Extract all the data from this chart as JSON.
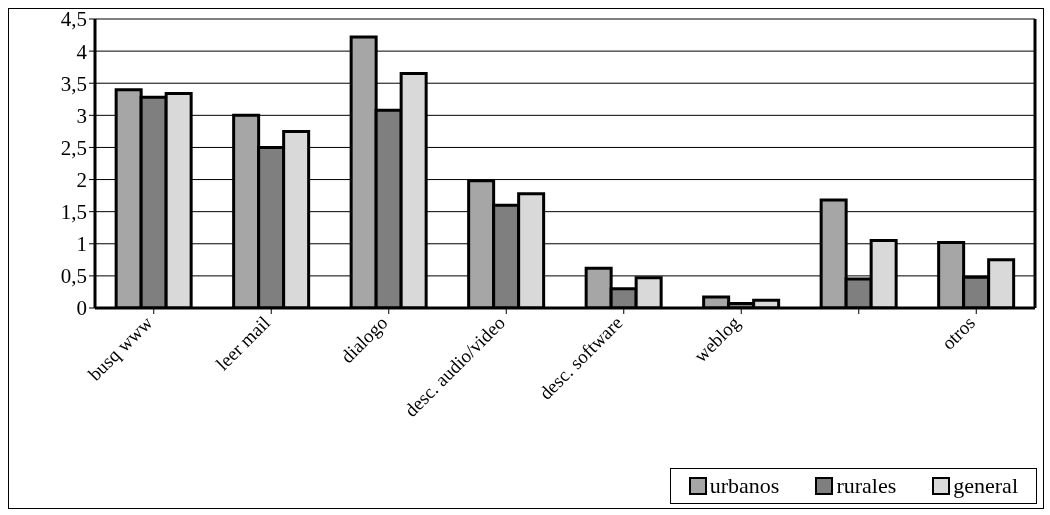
{
  "chart_data": {
    "type": "bar",
    "categories": [
      "busq www",
      "leer mail",
      "dialogo",
      "desc. audio/video",
      "desc. software",
      "weblog",
      null,
      "otros"
    ],
    "series": [
      {
        "name": "urbanos",
        "color": "#a6a6a6",
        "values": [
          3.4,
          3.0,
          4.22,
          1.98,
          0.62,
          0.17,
          1.68,
          1.02
        ]
      },
      {
        "name": "rurales",
        "color": "#7f7f7f",
        "values": [
          3.28,
          2.5,
          3.08,
          1.6,
          0.3,
          0.07,
          0.45,
          0.48
        ]
      },
      {
        "name": "general",
        "color": "#d9d9d9",
        "values": [
          3.34,
          2.75,
          3.65,
          1.78,
          0.47,
          0.12,
          1.05,
          0.75
        ]
      }
    ],
    "ylim": [
      0,
      4.5
    ],
    "yticks": [
      0,
      {
        "value": 0.5,
        "label": "0,5"
      },
      1,
      {
        "value": 1.5,
        "label": "1,5"
      },
      2,
      {
        "value": 2.5,
        "label": "2,5"
      },
      3,
      {
        "value": 3.5,
        "label": "3,5"
      },
      4,
      {
        "value": 4.5,
        "label": "4,5"
      }
    ],
    "grid": "y",
    "legend": "bottom right"
  }
}
